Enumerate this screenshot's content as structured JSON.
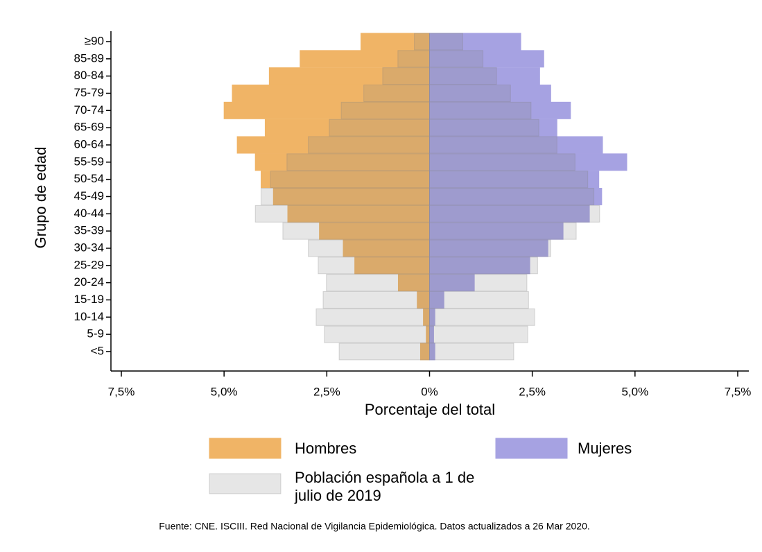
{
  "chart_data": {
    "type": "pyramid",
    "categories": [
      "≥90",
      "85-89",
      "80-84",
      "75-79",
      "70-74",
      "65-69",
      "60-64",
      "55-59",
      "50-54",
      "45-49",
      "40-44",
      "35-39",
      "30-34",
      "25-29",
      "20-24",
      "15-19",
      "10-14",
      "5-9",
      "<5"
    ],
    "series": [
      {
        "name": "Hombres",
        "color": "#f0b466",
        "values": [
          -1.67,
          -3.15,
          -3.9,
          -4.8,
          -5.0,
          -4.0,
          -4.68,
          -4.24,
          -4.1,
          -3.8,
          -3.45,
          -2.68,
          -2.1,
          -1.82,
          -0.76,
          -0.3,
          -0.15,
          -0.08,
          -0.22
        ]
      },
      {
        "name": "Mujeres",
        "color": "#a6a2e2",
        "values": [
          2.22,
          2.78,
          2.68,
          2.95,
          3.43,
          3.1,
          4.21,
          4.8,
          4.12,
          4.19,
          3.89,
          3.25,
          2.88,
          2.44,
          1.09,
          0.35,
          0.13,
          0.1,
          0.13
        ]
      },
      {
        "name": "Población española a 1 de julio de 2019",
        "color": "#808080",
        "values_hombres": [
          -0.37,
          -0.77,
          -1.14,
          -1.6,
          -2.15,
          -2.44,
          -2.95,
          -3.47,
          -3.87,
          -4.1,
          -4.24,
          -3.57,
          -2.95,
          -2.71,
          -2.51,
          -2.59,
          -2.76,
          -2.56,
          -2.2
        ],
        "values_mujeres": [
          0.81,
          1.3,
          1.63,
          1.97,
          2.47,
          2.66,
          3.1,
          3.54,
          3.85,
          4.0,
          4.14,
          3.57,
          2.95,
          2.63,
          2.37,
          2.41,
          2.56,
          2.39,
          2.05
        ]
      }
    ],
    "xlabel": "Porcentaje del total",
    "ylabel": "Grupo de edad",
    "xlim": [
      -7.5,
      7.5
    ],
    "xticks": [
      {
        "value": -7.5,
        "label": "7,5%"
      },
      {
        "value": -5,
        "label": "5,0%"
      },
      {
        "value": -2.5,
        "label": "2,5%"
      },
      {
        "value": 0,
        "label": "0%"
      },
      {
        "value": 2.5,
        "label": "2,5%"
      },
      {
        "value": 5,
        "label": "5,0%"
      },
      {
        "value": 7.5,
        "label": "7,5%"
      }
    ],
    "source": "Fuente: CNE. ISCIII. Red Nacional de Vigilancia Epidemiológica. Datos actualizados a 26 Mar 2020."
  }
}
